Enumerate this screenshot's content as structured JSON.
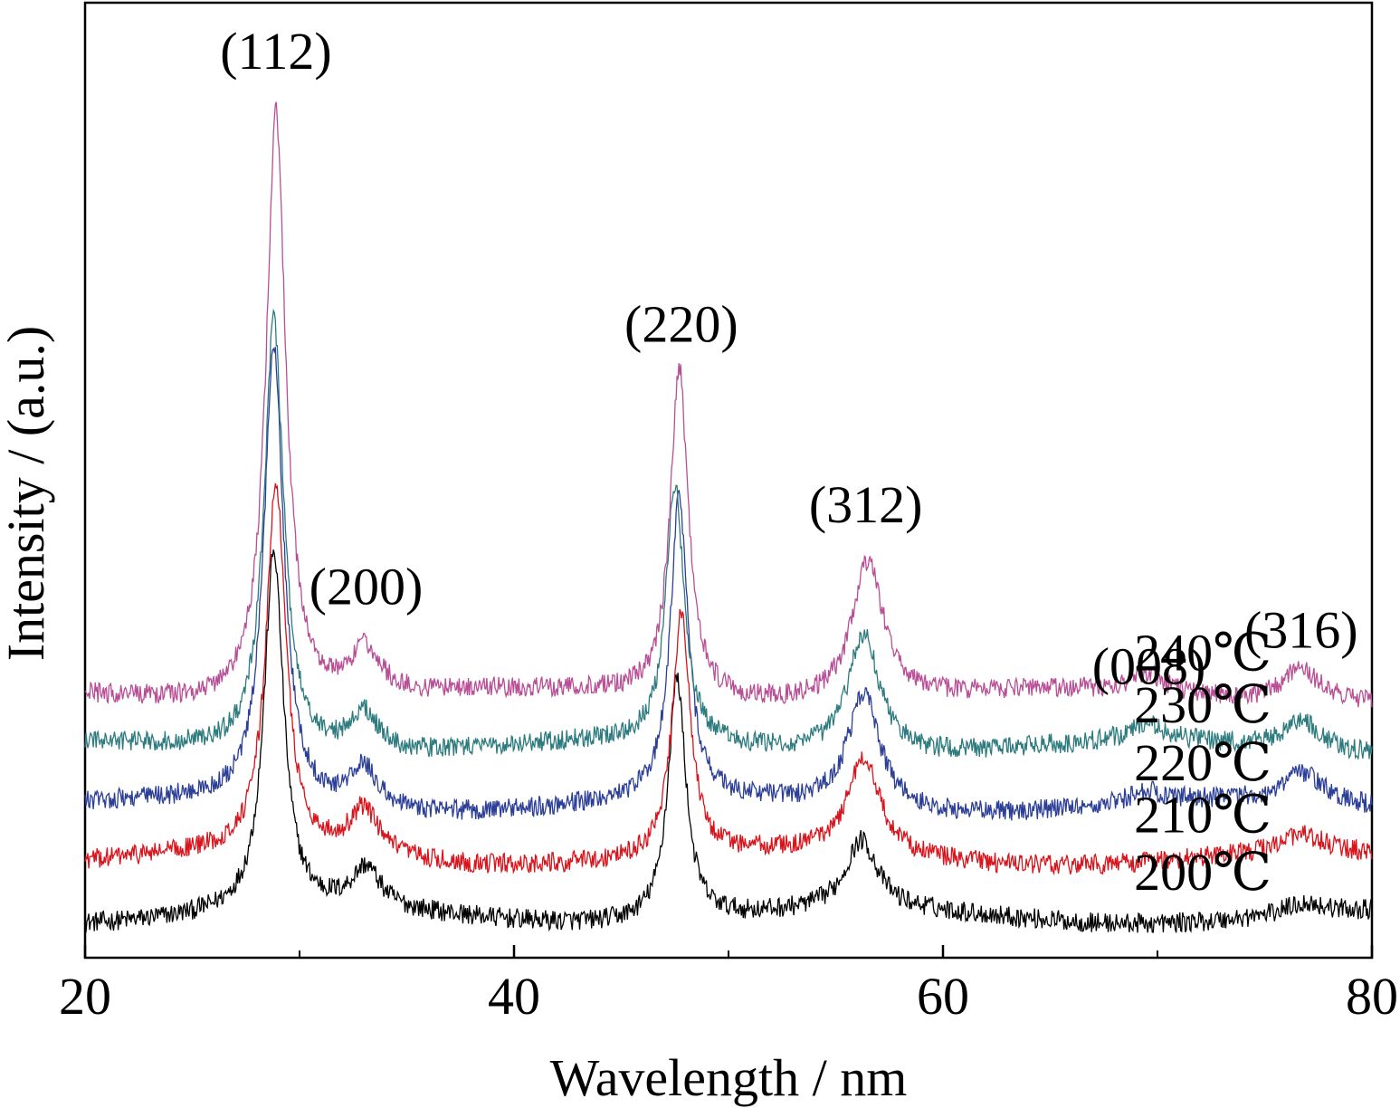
{
  "chart_data": {
    "type": "line",
    "title": "",
    "xlabel": "Wavelength / nm",
    "ylabel": "Intensity / (a.u.)",
    "xlim": [
      20,
      80
    ],
    "x_ticks": [
      20,
      40,
      60,
      80
    ],
    "x_tick_labels": [
      "20",
      "40",
      "60",
      "80"
    ],
    "x_minor_ticks": [
      30,
      50,
      70
    ],
    "y_ticks": [],
    "grid": false,
    "legend": "none",
    "peak_labels": [
      {
        "text": "(112)",
        "x": 28.9
      },
      {
        "text": "(200)",
        "x": 33.1
      },
      {
        "text": "(220)",
        "x": 47.8
      },
      {
        "text": "(312)",
        "x": 56.4
      },
      {
        "text": "(008)",
        "x": 69.6
      },
      {
        "text": "(316)",
        "x": 76.7
      }
    ],
    "series": [
      {
        "label": "200℃",
        "color": "#000000",
        "baseline": 0.07,
        "peaks": [
          {
            "x": 28.8,
            "h": 0.62,
            "w": 0.55
          },
          {
            "x": 33.1,
            "h": 0.07,
            "w": 0.8
          },
          {
            "x": 47.6,
            "h": 0.42,
            "w": 0.5
          },
          {
            "x": 56.2,
            "h": 0.12,
            "w": 0.9
          },
          {
            "x": 76.8,
            "h": 0.02,
            "w": 1.2
          }
        ]
      },
      {
        "label": "210℃",
        "color": "#d8141c",
        "baseline": 0.17,
        "peaks": [
          {
            "x": 28.9,
            "h": 0.64,
            "w": 0.55
          },
          {
            "x": 33.0,
            "h": 0.08,
            "w": 0.8
          },
          {
            "x": 47.8,
            "h": 0.42,
            "w": 0.5
          },
          {
            "x": 56.3,
            "h": 0.17,
            "w": 0.9
          },
          {
            "x": 76.8,
            "h": 0.03,
            "w": 1.2
          }
        ]
      },
      {
        "label": "220℃",
        "color": "#2c3f96",
        "baseline": 0.26,
        "peaks": [
          {
            "x": 28.8,
            "h": 0.8,
            "w": 0.55
          },
          {
            "x": 33.0,
            "h": 0.07,
            "w": 0.8
          },
          {
            "x": 47.7,
            "h": 0.52,
            "w": 0.5
          },
          {
            "x": 56.3,
            "h": 0.2,
            "w": 0.9
          },
          {
            "x": 69.5,
            "h": 0.02,
            "w": 1.0
          },
          {
            "x": 76.8,
            "h": 0.05,
            "w": 1.1
          }
        ]
      },
      {
        "label": "230℃",
        "color": "#2d7b7e",
        "baseline": 0.36,
        "peaks": [
          {
            "x": 28.8,
            "h": 0.75,
            "w": 0.55
          },
          {
            "x": 33.0,
            "h": 0.07,
            "w": 0.8
          },
          {
            "x": 47.5,
            "h": 0.45,
            "w": 0.5
          },
          {
            "x": 56.3,
            "h": 0.21,
            "w": 0.9
          },
          {
            "x": 69.5,
            "h": 0.03,
            "w": 1.0
          },
          {
            "x": 76.7,
            "h": 0.05,
            "w": 1.1
          }
        ]
      },
      {
        "label": "240℃",
        "color": "#b84f96",
        "baseline": 0.45,
        "peaks": [
          {
            "x": 28.9,
            "h": 1.02,
            "w": 0.55
          },
          {
            "x": 33.1,
            "h": 0.08,
            "w": 0.8
          },
          {
            "x": 47.7,
            "h": 0.57,
            "w": 0.5
          },
          {
            "x": 56.5,
            "h": 0.24,
            "w": 0.9
          },
          {
            "x": 69.6,
            "h": 0.03,
            "w": 1.0
          },
          {
            "x": 76.7,
            "h": 0.06,
            "w": 1.1
          }
        ]
      }
    ],
    "ylim": [
      0,
      1.65
    ]
  }
}
